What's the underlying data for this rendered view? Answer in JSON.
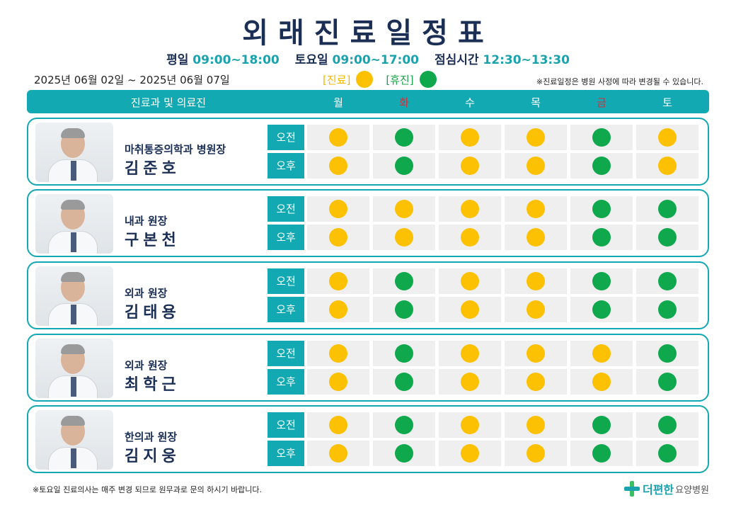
{
  "title": "외래진료일정표",
  "hours": {
    "weekday_label": "평일",
    "weekday_time": "09:00~18:00",
    "saturday_label": "토요일",
    "saturday_time": "09:00~17:00",
    "lunch_label": "점심시간",
    "lunch_time": "12:30~13:30"
  },
  "date_range": "2025년 06월 02일 ~ 2025년 06월 07일",
  "legend": {
    "open_label": "[진료]",
    "closed_label": "[휴진]",
    "open_color": "#fbc102",
    "closed_color": "#0fa84c"
  },
  "notice_top": "※진료일정은 병원 사정에 따라 변경될 수 있습니다.",
  "header": {
    "dept_label": "진료과 및 의료진",
    "days": [
      "월",
      "화",
      "수",
      "목",
      "금",
      "토"
    ],
    "red_days": [
      "화",
      "금"
    ]
  },
  "shift_labels": {
    "am": "오전",
    "pm": "오후"
  },
  "doctors": [
    {
      "title": "마취통증의학과 병원장",
      "name": "김준호",
      "am": [
        "open",
        "closed",
        "open",
        "open",
        "closed",
        "open"
      ],
      "pm": [
        "open",
        "closed",
        "open",
        "open",
        "closed",
        "open"
      ]
    },
    {
      "title": "내과 원장",
      "name": "구본천",
      "am": [
        "open",
        "open",
        "open",
        "open",
        "closed",
        "closed"
      ],
      "pm": [
        "open",
        "open",
        "open",
        "open",
        "closed",
        "closed"
      ]
    },
    {
      "title": "외과 원장",
      "name": "김태용",
      "am": [
        "open",
        "closed",
        "open",
        "open",
        "closed",
        "closed"
      ],
      "pm": [
        "open",
        "closed",
        "open",
        "open",
        "closed",
        "closed"
      ]
    },
    {
      "title": "외과 원장",
      "name": "최학근",
      "am": [
        "open",
        "closed",
        "open",
        "open",
        "open",
        "closed"
      ],
      "pm": [
        "open",
        "closed",
        "open",
        "open",
        "open",
        "closed"
      ]
    },
    {
      "title": "한의과 원장",
      "name": "김지웅",
      "am": [
        "open",
        "closed",
        "open",
        "open",
        "closed",
        "closed"
      ],
      "pm": [
        "open",
        "closed",
        "open",
        "open",
        "closed",
        "closed"
      ]
    }
  ],
  "footer_note": "※토요일 진료의사는 매주 변경 되므로 원무과로 문의 하시기 바랍니다.",
  "logo": {
    "name": "더편한",
    "suffix": "요양병원"
  }
}
